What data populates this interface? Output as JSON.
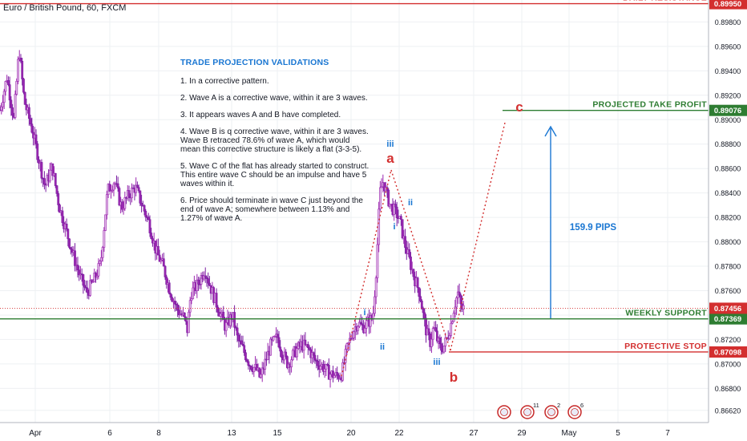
{
  "window": {
    "symbol_title": "Euro / British Pound, 60, FXCM"
  },
  "notes": {
    "title": "TRADE PROJECTION VALIDATIONS",
    "items": [
      "1. In a corrective pattern.",
      "2. Wave A is a corrective wave, within it are 3 waves.",
      "3. It appears waves A and B have completed.",
      "4.  Wave B is q corrective wave, within it are 3 waves.  Wave B retraced 78.6% of wave A, which would mean this corrective structure is likely a flat (3-3-5).",
      "5.  Wave C of the flat has already started to construct.  This entire wave C should be an impulse and have 5 waves within it.",
      "6. Price should terminate in wave C just beyond the end of wave A; somewhere between  1.13% and 1.27% of wave A."
    ]
  },
  "chart_data": {
    "type": "candlestick",
    "title": "Euro / British Pound, 60, FXCM",
    "y_axis": {
      "range": [
        0.8652,
        0.8998
      ],
      "position": "right",
      "tick_labels": [
        "0.89800",
        "0.89600",
        "0.89400",
        "0.89200",
        "0.89000",
        "0.88800",
        "0.88600",
        "0.88400",
        "0.88200",
        "0.88000",
        "0.87800",
        "0.87600",
        "0.87400",
        "0.87200",
        "0.87000",
        "0.86800",
        "0.86620"
      ],
      "tick_values": [
        0.898,
        0.896,
        0.894,
        0.892,
        0.89,
        0.888,
        0.886,
        0.884,
        0.882,
        0.88,
        0.878,
        0.876,
        0.874,
        0.872,
        0.87,
        0.868,
        0.8662
      ]
    },
    "x_axis": {
      "labels": [
        "Apr",
        "6",
        "8",
        "13",
        "15",
        "20",
        "22",
        "27",
        "29",
        "May",
        "5",
        "7"
      ]
    },
    "price_path": [
      [
        0,
        0.8908
      ],
      [
        4,
        0.8935
      ],
      [
        8,
        0.89
      ],
      [
        11,
        0.8958
      ],
      [
        14,
        0.8915
      ],
      [
        18,
        0.8895
      ],
      [
        22,
        0.887
      ],
      [
        26,
        0.8845
      ],
      [
        30,
        0.8862
      ],
      [
        34,
        0.883
      ],
      [
        38,
        0.881
      ],
      [
        42,
        0.879
      ],
      [
        46,
        0.8772
      ],
      [
        50,
        0.8758
      ],
      [
        54,
        0.8768
      ],
      [
        58,
        0.8782
      ],
      [
        62,
        0.8842
      ],
      [
        66,
        0.885
      ],
      [
        70,
        0.8828
      ],
      [
        74,
        0.8838
      ],
      [
        78,
        0.8845
      ],
      [
        82,
        0.883
      ],
      [
        86,
        0.8815
      ],
      [
        90,
        0.8792
      ],
      [
        94,
        0.878
      ],
      [
        98,
        0.876
      ],
      [
        102,
        0.8745
      ],
      [
        106,
        0.8738
      ],
      [
        108,
        0.8728
      ],
      [
        110,
        0.8758
      ],
      [
        114,
        0.8765
      ],
      [
        118,
        0.8778
      ],
      [
        122,
        0.876
      ],
      [
        126,
        0.8745
      ],
      [
        130,
        0.873
      ],
      [
        134,
        0.874
      ],
      [
        137,
        0.872
      ],
      [
        140,
        0.8712
      ],
      [
        144,
        0.87
      ],
      [
        148,
        0.8695
      ],
      [
        150,
        0.8688
      ],
      [
        153,
        0.8702
      ],
      [
        156,
        0.8715
      ],
      [
        160,
        0.8722
      ],
      [
        163,
        0.8708
      ],
      [
        166,
        0.87
      ],
      [
        170,
        0.871
      ],
      [
        174,
        0.8716
      ],
      [
        178,
        0.8712
      ],
      [
        182,
        0.8702
      ],
      [
        186,
        0.8698
      ],
      [
        190,
        0.8692
      ],
      [
        194,
        0.869
      ],
      [
        197,
        0.8692
      ],
      [
        200,
        0.8712
      ],
      [
        203,
        0.8725
      ],
      [
        206,
        0.8734
      ],
      [
        209,
        0.873
      ],
      [
        212,
        0.8734
      ],
      [
        215,
        0.8738
      ],
      [
        217,
        0.878
      ],
      [
        219,
        0.884
      ],
      [
        221,
        0.885
      ],
      [
        223,
        0.8838
      ],
      [
        225,
        0.883
      ],
      [
        227,
        0.8826
      ],
      [
        229,
        0.8822
      ],
      [
        231,
        0.8815
      ],
      [
        233,
        0.88
      ],
      [
        236,
        0.8785
      ],
      [
        239,
        0.877
      ],
      [
        242,
        0.8758
      ],
      [
        244,
        0.874
      ],
      [
        246,
        0.8725
      ],
      [
        248,
        0.8718
      ],
      [
        250,
        0.873
      ],
      [
        252,
        0.872
      ],
      [
        254,
        0.8712
      ],
      [
        256,
        0.8715
      ],
      [
        258,
        0.8722
      ],
      [
        260,
        0.8733
      ],
      [
        262,
        0.8748
      ],
      [
        264,
        0.8758
      ],
      [
        266,
        0.8745
      ],
      [
        268,
        0.8746
      ]
    ],
    "horizontal_levels": [
      {
        "name": "DAILY RESISTANCE",
        "value": 0.8995,
        "value_label": "0.89950",
        "color": "#d32f2f"
      },
      {
        "name": "PROJECTED TAKE PROFIT",
        "value": 0.89076,
        "value_label": "0.89076",
        "color": "#2e7d32"
      },
      {
        "name": "WEEKLY SUPPORT",
        "value": 0.87369,
        "value_label": "0.87369",
        "color": "#2e7d32"
      },
      {
        "name": "PROTECTIVE STOP",
        "value": 0.87098,
        "value_label": "0.87098",
        "color": "#d32f2f"
      }
    ],
    "current_price": {
      "value": 0.87456,
      "label": "0.87456",
      "color": "#d32f2f"
    },
    "wave_labels": [
      {
        "text": "iii",
        "color": "#1976d2"
      },
      {
        "text": "a",
        "color": "#d32f2f"
      },
      {
        "text": "ii",
        "color": "#1976d2"
      },
      {
        "text": "i",
        "color": "#1976d2"
      },
      {
        "text": "i",
        "color": "#1976d2"
      },
      {
        "text": "ii",
        "color": "#1976d2"
      },
      {
        "text": "iii",
        "color": "#1976d2"
      },
      {
        "text": "b",
        "color": "#d32f2f"
      },
      {
        "text": "c",
        "color": "#d32f2f"
      }
    ],
    "measure": {
      "text": "159.9 PIPS",
      "color": "#1976d2"
    },
    "event_badges": [
      {
        "count": ""
      },
      {
        "count": "11"
      },
      {
        "count": "2"
      },
      {
        "count": "6"
      }
    ],
    "colors": {
      "up": "#9c27b0",
      "down": "#9c27b0",
      "grid": "#eef0f3",
      "axis_text": "#131722"
    }
  }
}
